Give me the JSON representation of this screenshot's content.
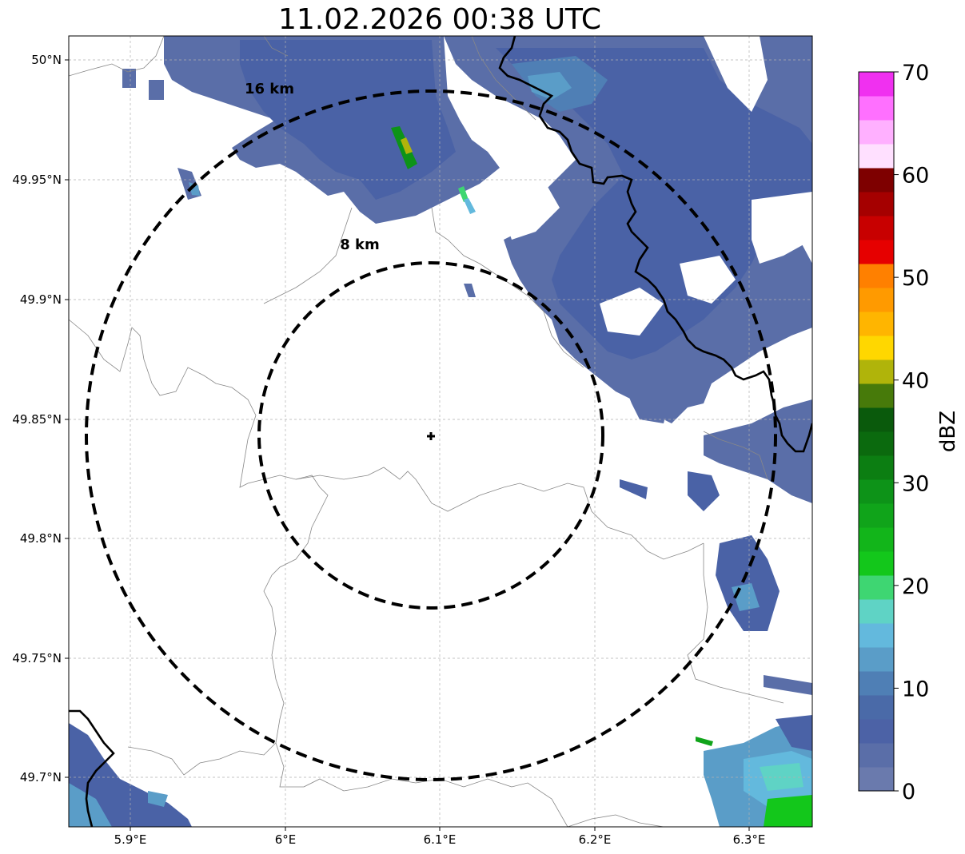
{
  "title": "11.02.2026 00:38 UTC",
  "map": {
    "lon_range": [
      5.86,
      6.34
    ],
    "lat_range": [
      49.68,
      50.01
    ],
    "lon_ticks": [
      {
        "value": 5.9,
        "label": "5.9°E"
      },
      {
        "value": 6.0,
        "label": "6°E"
      },
      {
        "value": 6.1,
        "label": "6.1°E"
      },
      {
        "value": 6.2,
        "label": "6.2°E"
      },
      {
        "value": 6.3,
        "label": "6.3°E"
      }
    ],
    "lat_ticks": [
      {
        "value": 50.0,
        "label": "50°N"
      },
      {
        "value": 49.95,
        "label": "49.95°N"
      },
      {
        "value": 49.9,
        "label": "49.9°N"
      },
      {
        "value": 49.85,
        "label": "49.85°N"
      },
      {
        "value": 49.8,
        "label": "49.8°N"
      },
      {
        "value": 49.75,
        "label": "49.75°N"
      },
      {
        "value": 49.7,
        "label": "49.7°N"
      }
    ],
    "radar_site": {
      "lon": 6.095,
      "lat": 49.843
    },
    "range_rings": [
      {
        "radius_km": 8,
        "label": "8 km"
      },
      {
        "radius_km": 16,
        "label": "16 km"
      }
    ],
    "grid": true
  },
  "colorbar": {
    "label": "dBZ",
    "min": 0,
    "max": 70,
    "ticks": [
      0,
      10,
      20,
      30,
      40,
      50,
      60,
      70
    ],
    "colors": [
      "#6a7aad",
      "#5a6ea8",
      "#4c62a6",
      "#4a6aa8",
      "#4f7fb5",
      "#5a9dc8",
      "#63b9dd",
      "#5fd3c5",
      "#3ed672",
      "#13c71b",
      "#12b51a",
      "#10a41a",
      "#0d9318",
      "#0c7e12",
      "#0b6a0e",
      "#0a5a0c",
      "#477a0a",
      "#b0b40a",
      "#ffd700",
      "#ffb500",
      "#ff9a00",
      "#ff8000",
      "#e60000",
      "#c80000",
      "#a50000",
      "#7e0000",
      "#ffe0ff",
      "#ffb0ff",
      "#ff70ff",
      "#f030f0"
    ]
  },
  "colors": {
    "border_major": "#000000",
    "border_minor": "#888888",
    "grid": "#b0b0b0"
  }
}
